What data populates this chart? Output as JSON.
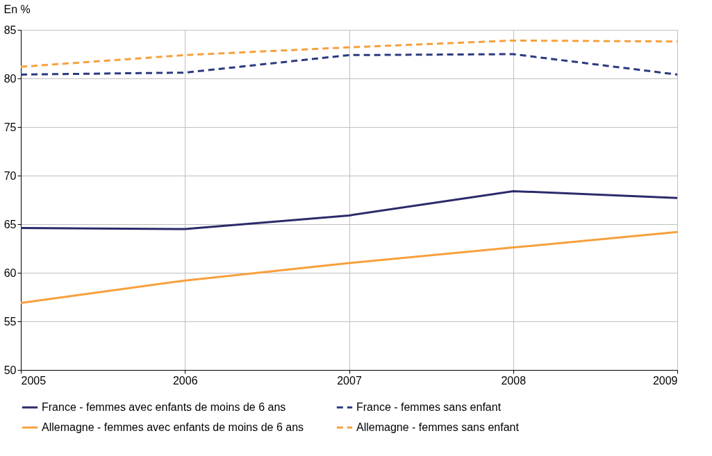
{
  "chart_data": {
    "type": "line",
    "ylabel": "En %",
    "x": [
      2005,
      2006,
      2007,
      2008,
      2009
    ],
    "xlim": [
      2005,
      2009
    ],
    "xticks": [
      2005,
      2006,
      2007,
      2008,
      2009
    ],
    "ylim": [
      50,
      85
    ],
    "yticks": [
      50,
      55,
      60,
      65,
      70,
      75,
      80,
      85
    ],
    "grid": true,
    "legend": "bottom",
    "marker": "none",
    "series": [
      {
        "name": "France - femmes avec enfants de moins de 6 ans",
        "color": "#2b2a6b",
        "line_style": "solid",
        "values": [
          64.6,
          64.5,
          65.9,
          68.4,
          67.7
        ]
      },
      {
        "name": "France - femmes sans enfant",
        "color": "#2b3a80",
        "line_style": "dashed",
        "values": [
          80.4,
          80.6,
          82.4,
          82.5,
          80.4
        ]
      },
      {
        "name": "Allemagne - femmes avec enfants de moins de 6 ans",
        "color": "#f7a03c",
        "line_style": "solid",
        "values": [
          56.9,
          59.2,
          61.0,
          62.6,
          64.2
        ]
      },
      {
        "name": "Allemagne - femmes sans enfant",
        "color": "#f7a03c",
        "line_style": "dashed",
        "values": [
          81.2,
          82.4,
          83.2,
          83.9,
          83.8
        ]
      }
    ]
  }
}
